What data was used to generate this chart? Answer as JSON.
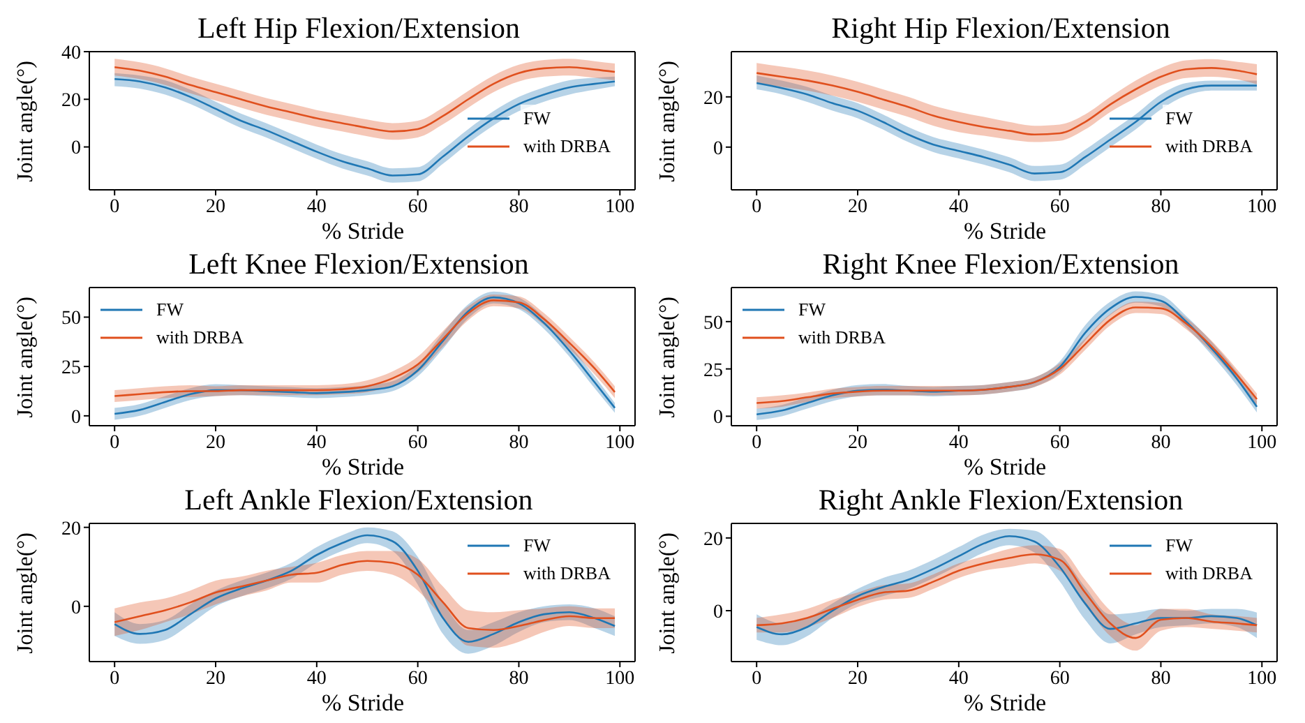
{
  "chart_data": [
    {
      "type": "line",
      "title": "Left Hip Flexion/Extension",
      "xlabel": "% Stride",
      "ylabel": "Joint angle(°)",
      "legend": "right",
      "x": [
        0,
        5,
        10,
        15,
        20,
        25,
        30,
        35,
        40,
        45,
        50,
        55,
        60,
        65,
        70,
        75,
        80,
        85,
        90,
        95,
        99
      ],
      "xlim": [
        -5,
        103
      ],
      "xticks": [
        0,
        20,
        40,
        60,
        80,
        100
      ],
      "ylim": [
        -18,
        40
      ],
      "yticks": [
        0,
        20,
        40
      ],
      "series": [
        {
          "name": "FW",
          "color": "#1f77b4",
          "values": [
            28.5,
            27.5,
            25,
            21,
            16,
            11,
            7,
            2.5,
            -2,
            -6,
            -9,
            -12,
            -11.5,
            -4,
            4.5,
            12,
            18,
            22,
            25,
            26.5,
            27.5
          ],
          "lower": [
            25.5,
            24.5,
            22,
            18,
            13,
            8,
            4,
            -0.5,
            -5,
            -9,
            -12,
            -15,
            -14.5,
            -7,
            1.5,
            9,
            15,
            19,
            22,
            24,
            25.5
          ],
          "upper": [
            31,
            30,
            28,
            24,
            19,
            14,
            10,
            5.5,
            1,
            -3,
            -6,
            -9,
            -8.5,
            -1,
            7.5,
            15,
            21,
            25,
            28,
            29,
            29.5
          ]
        },
        {
          "name": "with DRBA",
          "color": "#e0501e",
          "values": [
            33.5,
            32,
            29.5,
            26,
            23,
            20,
            17,
            14.5,
            12,
            10,
            8,
            6.5,
            7.5,
            13,
            20,
            26.5,
            31,
            33,
            33.5,
            32.5,
            31.5
          ],
          "lower": [
            30,
            28.5,
            26,
            22.5,
            19.5,
            16.5,
            13.5,
            11,
            8.5,
            6.5,
            4.5,
            3,
            4,
            9.5,
            16.5,
            23,
            27.5,
            29.5,
            30,
            29,
            28
          ],
          "upper": [
            37,
            35.5,
            33,
            29.5,
            26.5,
            23.5,
            20.5,
            18,
            15.5,
            13.5,
            11.5,
            10,
            11,
            16.5,
            23.5,
            30,
            34.5,
            36.5,
            37,
            36,
            35
          ]
        }
      ]
    },
    {
      "type": "line",
      "title": "Right Hip Flexion/Extension",
      "xlabel": "% Stride",
      "ylabel": "Joint angle(°)",
      "legend": "right",
      "x": [
        0,
        5,
        10,
        15,
        20,
        25,
        30,
        35,
        40,
        45,
        50,
        55,
        60,
        65,
        70,
        75,
        80,
        85,
        90,
        95,
        99
      ],
      "xlim": [
        -5,
        103
      ],
      "xticks": [
        0,
        20,
        40,
        60,
        80,
        100
      ],
      "ylim": [
        -17,
        38
      ],
      "yticks": [
        0,
        20
      ],
      "series": [
        {
          "name": "FW",
          "color": "#1f77b4",
          "values": [
            25.5,
            23.5,
            21,
            17.5,
            14.5,
            10,
            5,
            1,
            -1.5,
            -4,
            -7,
            -10.5,
            -10,
            -4,
            3,
            10,
            18,
            23,
            24.5,
            24.5,
            24.5
          ],
          "lower": [
            23,
            21,
            18,
            14.5,
            11.5,
            7,
            2,
            -2,
            -4.5,
            -7,
            -10,
            -13.5,
            -13,
            -7,
            0,
            7,
            15,
            20.5,
            22.5,
            22.5,
            22.5
          ],
          "upper": [
            28.5,
            26.5,
            24,
            20.5,
            17.5,
            13,
            8,
            4,
            1.5,
            -1,
            -4,
            -7.5,
            -7,
            -1,
            6,
            13,
            21,
            25.5,
            26.5,
            26.5,
            26.5
          ]
        },
        {
          "name": "with DRBA",
          "color": "#e0501e",
          "values": [
            29.5,
            28,
            26.5,
            24.5,
            22,
            19,
            16,
            12.5,
            10,
            8,
            6.5,
            5,
            5.5,
            10,
            17,
            23,
            28,
            31,
            31.5,
            30.5,
            29
          ],
          "lower": [
            25.5,
            24,
            22.5,
            20.5,
            18,
            15,
            12,
            8.5,
            6,
            4.5,
            3,
            2,
            2.5,
            7,
            14,
            19.5,
            24.5,
            27.5,
            28,
            27,
            25
          ],
          "upper": [
            33.5,
            32,
            30.5,
            28.5,
            26,
            23,
            20,
            16.5,
            14,
            12,
            10,
            8.5,
            9,
            13,
            20,
            26.5,
            31.5,
            34.5,
            35,
            34,
            33
          ]
        }
      ]
    },
    {
      "type": "line",
      "title": "Left Knee Flexion/Extension",
      "xlabel": "% Stride",
      "ylabel": "Joint angle(°)",
      "legend": "top left",
      "x": [
        0,
        5,
        10,
        15,
        20,
        25,
        30,
        35,
        40,
        45,
        50,
        55,
        60,
        65,
        70,
        75,
        80,
        85,
        90,
        95,
        99
      ],
      "xlim": [
        -5,
        103
      ],
      "xticks": [
        0,
        20,
        40,
        60,
        80,
        100
      ],
      "ylim": [
        -5,
        65
      ],
      "yticks": [
        0,
        25,
        50
      ],
      "series": [
        {
          "name": "FW",
          "color": "#1f77b4",
          "values": [
            1,
            3,
            7,
            11,
            13,
            13,
            12.5,
            12,
            11.5,
            12,
            13,
            15,
            23,
            38,
            53,
            60,
            57,
            47,
            33,
            17,
            4
          ],
          "lower": [
            -2,
            0,
            4,
            8,
            10,
            10.5,
            10,
            9.5,
            9,
            9.5,
            10.5,
            12.5,
            20,
            34,
            49.5,
            57,
            54,
            44,
            30,
            14,
            1.5
          ],
          "upper": [
            4,
            6,
            10,
            14,
            16,
            15.5,
            15,
            14.5,
            14,
            14.5,
            15.5,
            17.5,
            26,
            42,
            56.5,
            63,
            60,
            50,
            36,
            20,
            6.5
          ]
        },
        {
          "name": "with DRBA",
          "color": "#e0501e",
          "values": [
            10,
            11,
            12,
            12.5,
            12.5,
            13,
            13,
            13,
            13,
            13.5,
            15,
            19,
            26,
            39,
            52,
            58.5,
            57.5,
            49,
            37,
            24,
            12
          ],
          "lower": [
            7,
            8,
            9,
            9.5,
            10,
            10.5,
            10.5,
            10.5,
            10.5,
            11,
            12,
            15.5,
            22,
            35,
            48.5,
            55.5,
            54.5,
            46,
            34,
            21,
            9
          ],
          "upper": [
            13,
            14,
            15,
            15.5,
            15,
            15.5,
            15.5,
            15.5,
            15.5,
            16,
            18,
            22.5,
            30,
            43,
            55.5,
            61.5,
            60.5,
            52,
            40,
            27,
            15
          ]
        }
      ]
    },
    {
      "type": "line",
      "title": "Right Knee Flexion/Extension",
      "xlabel": "% Stride",
      "ylabel": "Joint angle(°)",
      "legend": "top left",
      "x": [
        0,
        5,
        10,
        15,
        20,
        25,
        30,
        35,
        40,
        45,
        50,
        55,
        60,
        65,
        70,
        75,
        80,
        85,
        90,
        95,
        99
      ],
      "xlim": [
        -5,
        103
      ],
      "xticks": [
        0,
        20,
        40,
        60,
        80,
        100
      ],
      "ylim": [
        -5,
        68
      ],
      "yticks": [
        0,
        25,
        50
      ],
      "series": [
        {
          "name": "FW",
          "color": "#1f77b4",
          "values": [
            1,
            3,
            7,
            11,
            13.5,
            14,
            13.5,
            13,
            13.5,
            14,
            15.5,
            18,
            26,
            44,
            57,
            63,
            61,
            50,
            36,
            20,
            5
          ],
          "lower": [
            -2,
            0,
            4,
            8,
            10.5,
            11,
            11,
            10.5,
            11,
            11.5,
            13,
            15.5,
            23,
            40,
            53.5,
            60,
            58,
            47,
            32.5,
            16.5,
            2
          ],
          "upper": [
            4,
            6,
            10,
            14,
            16.5,
            17,
            16,
            15.5,
            16,
            16.5,
            18,
            20.5,
            29,
            48,
            60.5,
            66,
            64,
            53,
            39.5,
            23.5,
            8
          ]
        },
        {
          "name": "with DRBA",
          "color": "#e0501e",
          "values": [
            7,
            8,
            10,
            12,
            13,
            13.5,
            13.5,
            13.5,
            13.5,
            14,
            15.5,
            18,
            25,
            38,
            51,
            57.5,
            57,
            49,
            37,
            22,
            9
          ],
          "lower": [
            4,
            5,
            7.5,
            9.5,
            10.5,
            11,
            11,
            11,
            11,
            11.5,
            13,
            15.5,
            22,
            35,
            48,
            54.5,
            54,
            46,
            34,
            19,
            6
          ],
          "upper": [
            10,
            11,
            12.5,
            14.5,
            15.5,
            16,
            16,
            16,
            16,
            16.5,
            18,
            20.5,
            28,
            41,
            54,
            60.5,
            60,
            52,
            40,
            25,
            12
          ]
        }
      ]
    },
    {
      "type": "line",
      "title": "Left Ankle Flexion/Extension",
      "xlabel": "% Stride",
      "ylabel": "Joint angle(°)",
      "legend": "top right",
      "x": [
        0,
        5,
        10,
        15,
        20,
        25,
        30,
        35,
        40,
        45,
        50,
        55,
        60,
        65,
        70,
        75,
        80,
        85,
        90,
        95,
        99
      ],
      "xlim": [
        -5,
        103
      ],
      "xticks": [
        0,
        20,
        40,
        60,
        80,
        100
      ],
      "ylim": [
        -14,
        21
      ],
      "yticks": [
        0,
        20
      ],
      "series": [
        {
          "name": "FW",
          "color": "#1f77b4",
          "values": [
            -4.5,
            -7,
            -6,
            -2,
            2,
            4.5,
            6.5,
            9,
            13,
            16,
            18,
            16.5,
            9,
            -3,
            -9,
            -7,
            -4,
            -2,
            -1.5,
            -3,
            -5
          ],
          "lower": [
            -7.5,
            -9.5,
            -8.5,
            -4.5,
            0,
            2.5,
            4.5,
            7,
            11,
            14,
            16,
            14,
            5.5,
            -7,
            -12,
            -10,
            -6.5,
            -4,
            -3.5,
            -5.5,
            -7.5
          ],
          "upper": [
            -1.5,
            -4.5,
            -3.5,
            0.5,
            4,
            6.5,
            8.5,
            11,
            15,
            18,
            20,
            19,
            12.5,
            1,
            -6,
            -4,
            -1.5,
            0,
            0.5,
            -0.5,
            -2.5
          ]
        },
        {
          "name": "with DRBA",
          "color": "#e0501e",
          "values": [
            -4,
            -2.5,
            -1,
            1,
            3.5,
            5,
            6.5,
            8,
            8.5,
            10.5,
            11.5,
            11,
            8,
            1,
            -5.5,
            -6,
            -5,
            -3.5,
            -2.5,
            -3,
            -3
          ],
          "lower": [
            -7.5,
            -6,
            -4,
            -2,
            0.5,
            2.5,
            4,
            6,
            6,
            8,
            9,
            8,
            4,
            -3,
            -10,
            -10.5,
            -9,
            -6.5,
            -5,
            -5.5,
            -5.5
          ],
          "upper": [
            -0.5,
            1,
            2,
            4,
            6.5,
            7.5,
            9,
            10,
            11,
            13,
            14,
            14,
            12,
            5,
            -1,
            -1.5,
            -1,
            -0.5,
            0,
            -0.5,
            -0.5
          ]
        }
      ]
    },
    {
      "type": "line",
      "title": "Right Ankle Flexion/Extension",
      "xlabel": "% Stride",
      "ylabel": "Joint angle(°)",
      "legend": "top right",
      "x": [
        0,
        5,
        10,
        15,
        20,
        25,
        30,
        35,
        40,
        45,
        50,
        55,
        60,
        65,
        70,
        75,
        80,
        85,
        90,
        95,
        99
      ],
      "xlim": [
        -5,
        103
      ],
      "xticks": [
        0,
        20,
        40,
        60,
        80,
        100
      ],
      "ylim": [
        -14,
        24
      ],
      "yticks": [
        0,
        20
      ],
      "series": [
        {
          "name": "FW",
          "color": "#1f77b4",
          "values": [
            -4.5,
            -6.5,
            -4.5,
            0,
            4,
            6.5,
            8.5,
            11.5,
            15,
            18.5,
            20.5,
            19,
            12,
            2,
            -5,
            -3.5,
            -2,
            -2,
            -1.5,
            -2,
            -4
          ],
          "lower": [
            -8,
            -9.5,
            -7,
            -2,
            2,
            4,
            6,
            9,
            12.5,
            16,
            18,
            16,
            8,
            -2.5,
            -9,
            -6.5,
            -4.5,
            -4,
            -3.5,
            -4.5,
            -7.5
          ],
          "upper": [
            -1,
            -3.5,
            -2,
            2,
            6,
            9,
            11,
            14,
            17.5,
            21,
            22.5,
            22,
            16,
            6.5,
            -1,
            -0.5,
            0.5,
            0,
            0.5,
            0.5,
            -0.5
          ]
        },
        {
          "name": "with DRBA",
          "color": "#e0501e",
          "values": [
            -4,
            -3.5,
            -2,
            0.5,
            3,
            5,
            5.5,
            8,
            11,
            13,
            14.5,
            15.5,
            14,
            5,
            -3.5,
            -7.5,
            -2.5,
            -2,
            -3,
            -3.5,
            -4
          ],
          "lower": [
            -6,
            -6,
            -4.5,
            -2,
            1,
            3,
            3.5,
            6,
            9,
            11,
            12,
            13,
            11,
            1.5,
            -7,
            -11,
            -5.5,
            -4.5,
            -5,
            -5.5,
            -6
          ],
          "upper": [
            -2,
            -1,
            0.5,
            3,
            5,
            7,
            7.5,
            10,
            13,
            15,
            17,
            18,
            17,
            8.5,
            0,
            -4,
            0.5,
            0.5,
            -1,
            -1.5,
            -2
          ]
        }
      ]
    }
  ]
}
